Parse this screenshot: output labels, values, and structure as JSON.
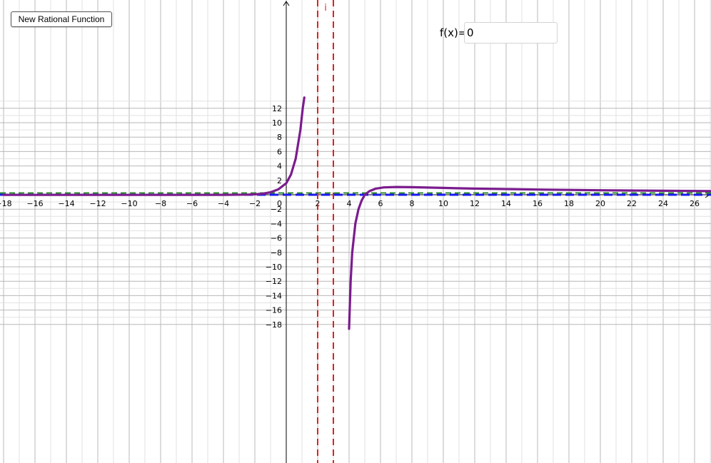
{
  "toolbar": {
    "new_function_label": "New Rational Function"
  },
  "input": {
    "label": "f(x)=",
    "value": "0"
  },
  "colors": {
    "grid_major": "#b8b8b8",
    "grid_minor": "#e2e2e2",
    "curve": "#7b1c8e",
    "vertical_asymptote": "#e02020",
    "horizontal_asymptote_1": "#2e8b2e",
    "horizontal_asymptote_2": "#1a1aee"
  },
  "graph": {
    "x_range": [
      -18,
      27
    ],
    "y_range": [
      -18.6,
      13.5
    ],
    "x_tick_step": 2,
    "y_tick_step": 2,
    "minor_per_major": 2,
    "vertical_asymptotes": [
      2,
      3
    ],
    "asymptote_label": "i",
    "horizontal_asymptotes": [
      0.25,
      0
    ],
    "curve_points": [
      [
        -18,
        -0.02
      ],
      [
        -16,
        -0.02
      ],
      [
        -12,
        -0.02
      ],
      [
        -8,
        -0.02
      ],
      [
        -4,
        -0.01
      ],
      [
        -2.5,
        0.02
      ],
      [
        -2,
        0.06
      ],
      [
        -1.5,
        0.15
      ],
      [
        -1,
        0.35
      ],
      [
        -0.5,
        0.75
      ],
      [
        0,
        1.6
      ],
      [
        0.3,
        2.8
      ],
      [
        0.6,
        5.0
      ],
      [
        0.9,
        9.0
      ],
      [
        1.05,
        12.0
      ],
      [
        1.15,
        13.5
      ]
    ],
    "curve_points_right": [
      [
        4.0,
        -18.6
      ],
      [
        4.1,
        -12.0
      ],
      [
        4.2,
        -8.0
      ],
      [
        4.4,
        -4.0
      ],
      [
        4.6,
        -2.0
      ],
      [
        4.8,
        -0.8
      ],
      [
        5.0,
        0.0
      ],
      [
        5.3,
        0.5
      ],
      [
        5.7,
        0.85
      ],
      [
        6.2,
        1.02
      ],
      [
        7,
        1.08
      ],
      [
        8,
        1.05
      ],
      [
        10,
        0.95
      ],
      [
        12,
        0.85
      ],
      [
        16,
        0.72
      ],
      [
        20,
        0.62
      ],
      [
        24,
        0.55
      ],
      [
        27,
        0.5
      ]
    ]
  }
}
